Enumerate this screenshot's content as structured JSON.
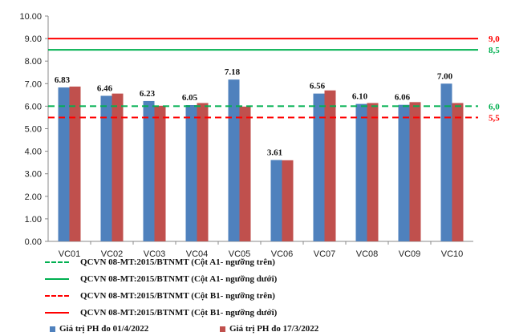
{
  "chart_data": {
    "type": "bar",
    "title": "",
    "xlabel": "",
    "ylabel": "",
    "ylim": [
      0,
      10
    ],
    "yticks": [
      "0.00",
      "1.00",
      "2.00",
      "3.00",
      "4.00",
      "5.00",
      "6.00",
      "7.00",
      "8.00",
      "9.00",
      "10.00"
    ],
    "categories": [
      "VC01",
      "VC02",
      "VC03",
      "VC04",
      "VC05",
      "VC06",
      "VC07",
      "VC08",
      "VC09",
      "VC10"
    ],
    "series": [
      {
        "name": "Giá trị PH đo 01/4/2022",
        "color": "#4f81bd",
        "values": [
          6.83,
          6.46,
          6.23,
          6.05,
          7.18,
          3.61,
          6.56,
          6.1,
          6.06,
          7.0
        ],
        "labels": [
          "6.83",
          "6.46",
          "6.23",
          "6.05",
          "7.18",
          "3.61",
          "6.56",
          "6.10",
          "6.06",
          "7.00"
        ]
      },
      {
        "name": "Giá trị PH đo 17/3/2022",
        "color": "#c0504d",
        "values": [
          6.87,
          6.56,
          6.02,
          6.14,
          5.98,
          3.6,
          6.7,
          6.14,
          6.18,
          6.14
        ]
      }
    ],
    "thresholds": [
      {
        "name": "QCVN 08-MT:2015/BTNMT (Cột A1- ngưỡng trên)",
        "value": 6.0,
        "label": "6,0",
        "color": "#00b050",
        "style": "dashed"
      },
      {
        "name": "QCVN 08-MT:2015/BTNMT (Cột A1- ngưỡng dưới)",
        "value": 8.5,
        "label": "8,5",
        "color": "#00b050",
        "style": "solid"
      },
      {
        "name": "QCVN 08-MT:2015/BTNMT (Cột B1- ngưỡng trên)",
        "value": 5.5,
        "label": "5,5",
        "color": "#ff0000",
        "style": "dashed"
      },
      {
        "name": "QCVN 08-MT:2015/BTNMT (Cột B1- ngưỡng dưới)",
        "value": 9.0,
        "label": "9,0",
        "color": "#ff0000",
        "style": "solid"
      }
    ],
    "grid": false,
    "legend_position": "bottom"
  }
}
